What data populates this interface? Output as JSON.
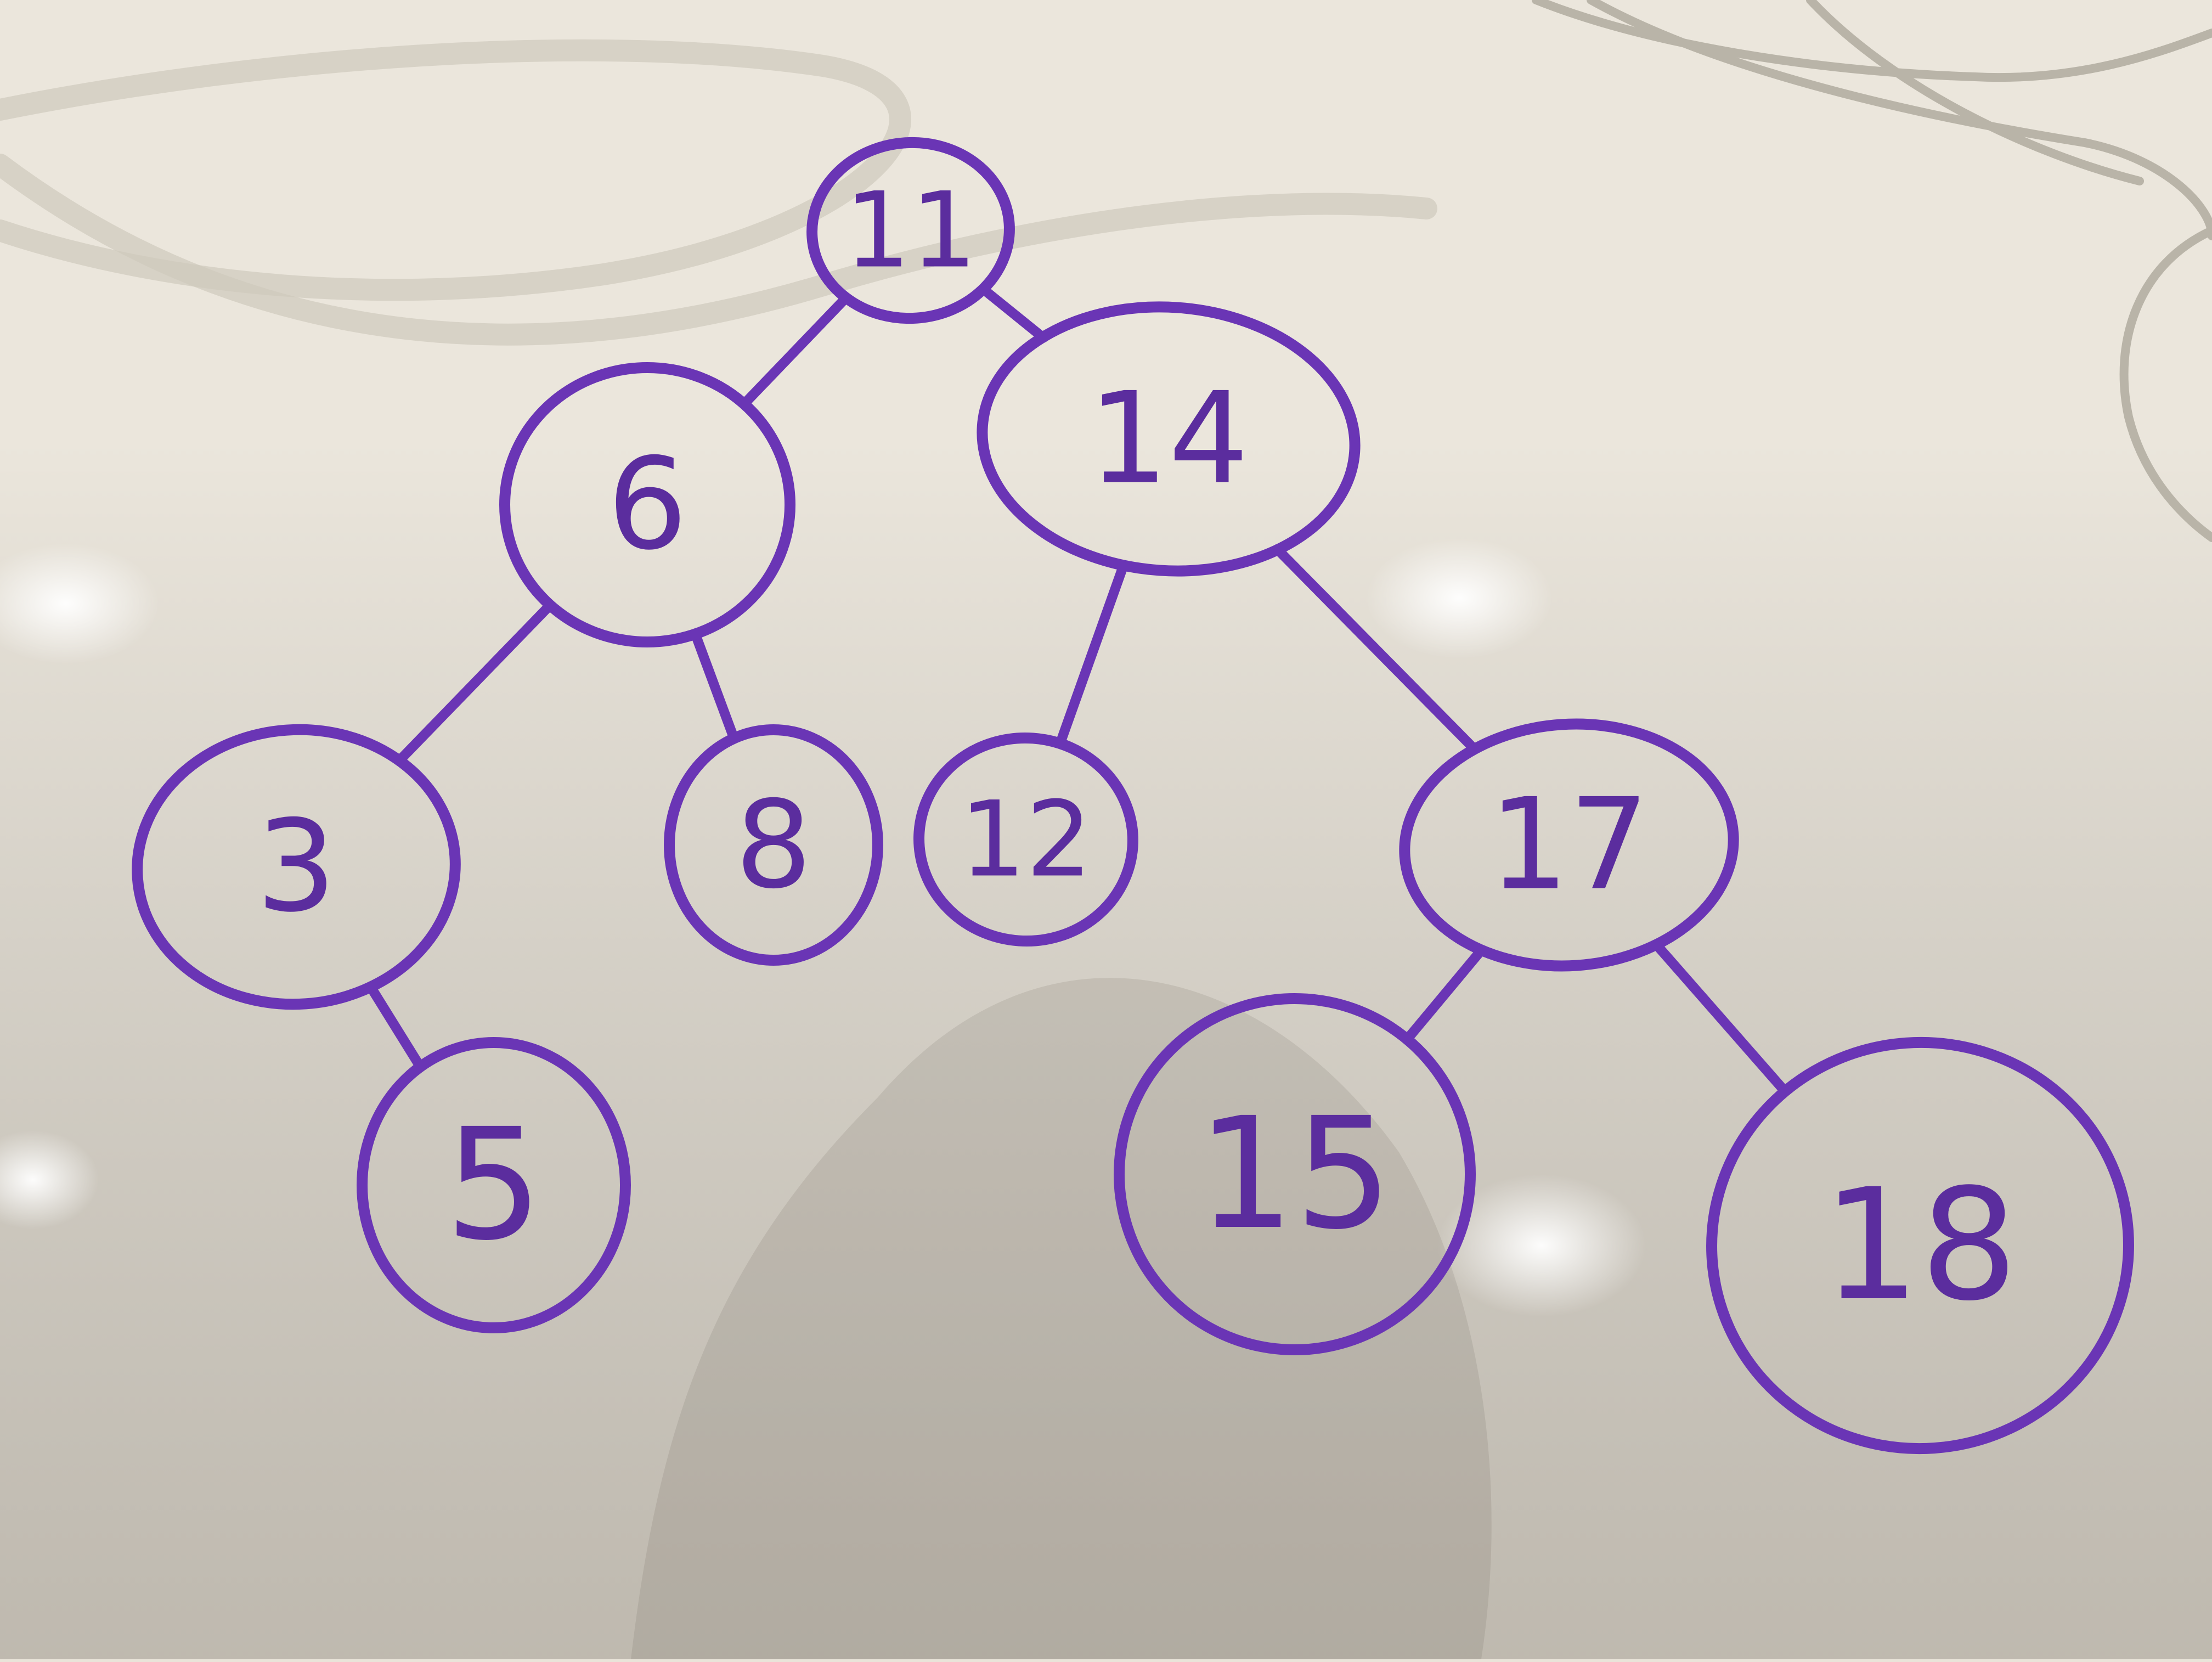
{
  "diagram": {
    "type": "binary-search-tree",
    "medium": "whiteboard",
    "ink_color": "#6a35b5",
    "nodes": [
      {
        "id": "n11",
        "label": "11"
      },
      {
        "id": "n6",
        "label": "6"
      },
      {
        "id": "n14",
        "label": "14"
      },
      {
        "id": "n3",
        "label": "3"
      },
      {
        "id": "n8",
        "label": "8"
      },
      {
        "id": "n12",
        "label": "12"
      },
      {
        "id": "n17",
        "label": "17"
      },
      {
        "id": "n5",
        "label": "5"
      },
      {
        "id": "n15",
        "label": "15"
      },
      {
        "id": "n18",
        "label": "18"
      }
    ],
    "edges": [
      {
        "from": "n11",
        "to": "n6"
      },
      {
        "from": "n11",
        "to": "n14"
      },
      {
        "from": "n6",
        "to": "n3"
      },
      {
        "from": "n6",
        "to": "n8"
      },
      {
        "from": "n3",
        "to": "n5"
      },
      {
        "from": "n14",
        "to": "n12"
      },
      {
        "from": "n14",
        "to": "n17"
      },
      {
        "from": "n17",
        "to": "n15"
      },
      {
        "from": "n17",
        "to": "n18"
      }
    ]
  }
}
